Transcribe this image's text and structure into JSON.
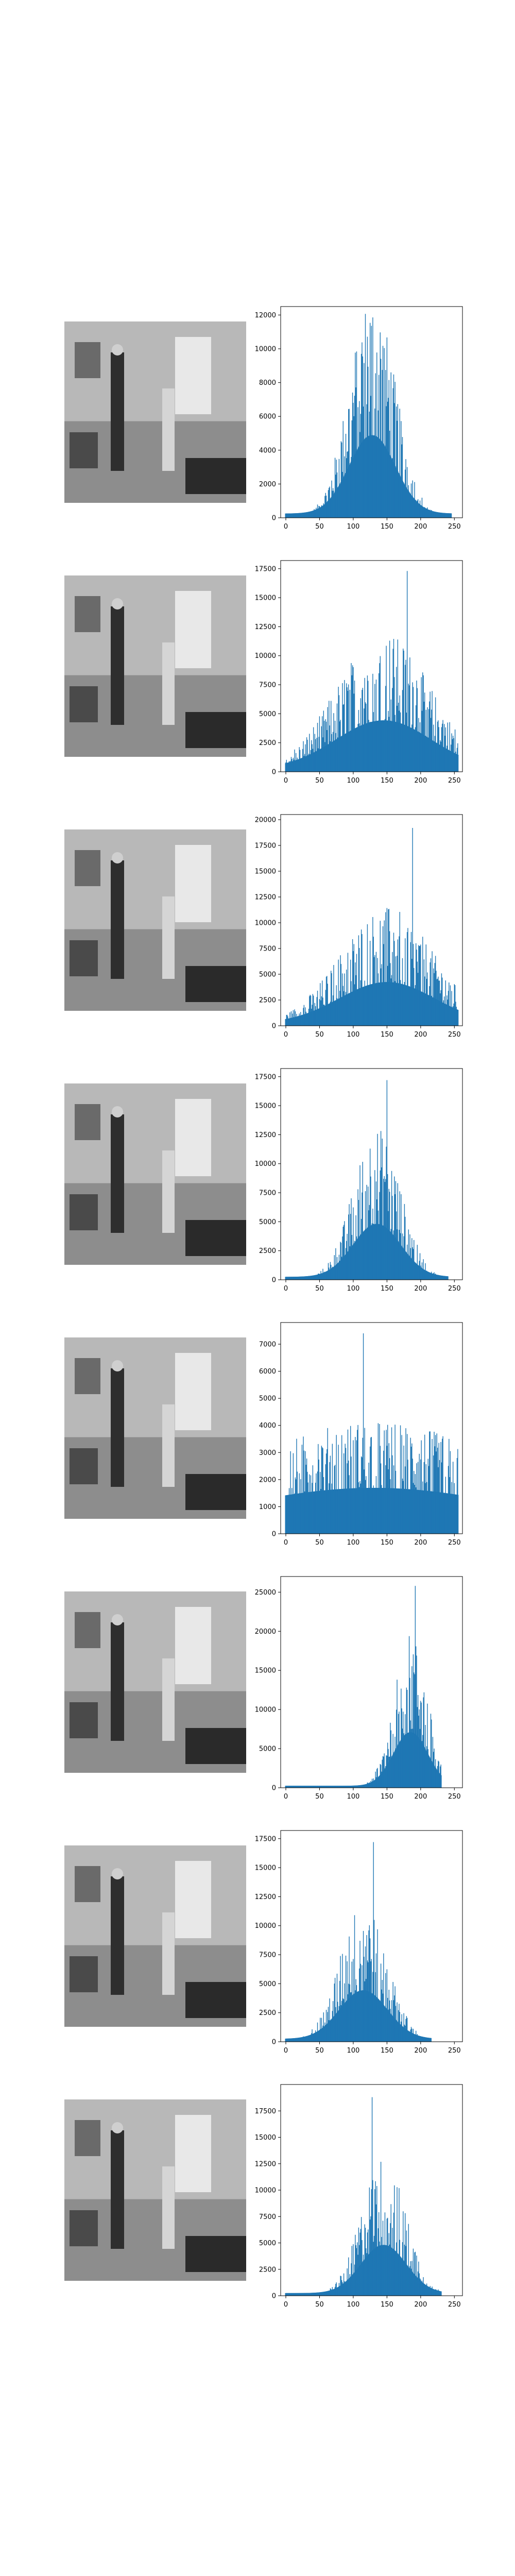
{
  "figure": {
    "rows": [
      {
        "image": "grayscale-photo-original",
        "hist_ymax": 12500,
        "y_ticks": [
          "0",
          "2000",
          "4000",
          "6000",
          "8000",
          "10000",
          "12000"
        ],
        "y_tick_values": [
          0,
          2000,
          4000,
          6000,
          8000,
          10000,
          12000
        ],
        "x_ticks": [
          "0",
          "50",
          "100",
          "150",
          "200",
          "250"
        ],
        "shape": {
          "mean": 128,
          "sd": 34,
          "peak": 12200,
          "min_val": 0,
          "max_val": 245
        }
      },
      {
        "image": "grayscale-photo-equalized-1",
        "hist_ymax": 18200,
        "y_ticks": [
          "0",
          "2500",
          "5000",
          "7500",
          "10000",
          "12500",
          "15000",
          "17500"
        ],
        "y_tick_values": [
          0,
          2500,
          5000,
          7500,
          10000,
          12500,
          15000,
          17500
        ],
        "x_ticks": [
          "0",
          "50",
          "100",
          "150",
          "200",
          "250"
        ],
        "shape": {
          "mean": 145,
          "sd": 70,
          "peak": 11000,
          "spike_at": 180,
          "spike": 17300,
          "min_val": 0,
          "max_val": 255
        }
      },
      {
        "image": "grayscale-photo-equalized-2",
        "hist_ymax": 20500,
        "y_ticks": [
          "0",
          "2500",
          "5000",
          "7500",
          "10000",
          "12500",
          "15000",
          "17500",
          "20000"
        ],
        "y_tick_values": [
          0,
          2500,
          5000,
          7500,
          10000,
          12500,
          15000,
          17500,
          20000
        ],
        "x_ticks": [
          "0",
          "50",
          "100",
          "150",
          "200",
          "250"
        ],
        "shape": {
          "mean": 150,
          "sd": 70,
          "peak": 10500,
          "spike_at": 188,
          "spike": 19200,
          "min_val": 0,
          "max_val": 255
        }
      },
      {
        "image": "grayscale-photo-contrast",
        "hist_ymax": 18200,
        "y_ticks": [
          "0",
          "2500",
          "5000",
          "7500",
          "10000",
          "12500",
          "15000",
          "17500"
        ],
        "y_tick_values": [
          0,
          2500,
          5000,
          7500,
          10000,
          12500,
          15000,
          17500
        ],
        "x_ticks": [
          "0",
          "50",
          "100",
          "150",
          "200",
          "250"
        ],
        "shape": {
          "mean": 135,
          "sd": 35,
          "peak": 12000,
          "spike_at": 150,
          "spike": 17200,
          "min_val": 0,
          "max_val": 240
        }
      },
      {
        "image": "grayscale-photo-flat",
        "hist_ymax": 7800,
        "y_ticks": [
          "0",
          "1000",
          "2000",
          "3000",
          "4000",
          "5000",
          "6000",
          "7000"
        ],
        "y_tick_values": [
          0,
          1000,
          2000,
          3000,
          4000,
          5000,
          6000,
          7000
        ],
        "x_ticks": [
          "0",
          "50",
          "100",
          "150",
          "200",
          "250"
        ],
        "shape": {
          "mean": 130,
          "sd": 200,
          "peak": 3800,
          "spike_at": 115,
          "spike": 7400,
          "min_val": 0,
          "max_val": 255
        }
      },
      {
        "image": "grayscale-photo-bright",
        "hist_ymax": 27000,
        "y_ticks": [
          "0",
          "5000",
          "10000",
          "15000",
          "20000",
          "25000"
        ],
        "y_tick_values": [
          0,
          5000,
          10000,
          15000,
          20000,
          25000
        ],
        "x_ticks": [
          "0",
          "50",
          "100",
          "150",
          "200",
          "250"
        ],
        "shape": {
          "mean": 185,
          "sd": 25,
          "peak": 18000,
          "spike_at": 192,
          "spike": 25800,
          "min_val": 0,
          "max_val": 230
        }
      },
      {
        "image": "grayscale-photo-dark",
        "hist_ymax": 18200,
        "y_ticks": [
          "0",
          "2500",
          "5000",
          "7500",
          "10000",
          "12500",
          "15000",
          "17500"
        ],
        "y_tick_values": [
          0,
          2500,
          5000,
          7500,
          10000,
          12500,
          15000,
          17500
        ],
        "x_ticks": [
          "0",
          "50",
          "100",
          "150",
          "200",
          "250"
        ],
        "shape": {
          "mean": 115,
          "sd": 35,
          "peak": 11000,
          "spike_at": 130,
          "spike": 17200,
          "min_val": 0,
          "max_val": 215
        }
      },
      {
        "image": "grayscale-photo-gamma",
        "hist_ymax": 20000,
        "y_ticks": [
          "0",
          "2500",
          "5000",
          "7500",
          "10000",
          "12500",
          "15000",
          "17500"
        ],
        "y_tick_values": [
          0,
          2500,
          5000,
          7500,
          10000,
          12500,
          15000,
          17500
        ],
        "x_ticks": [
          "0",
          "50",
          "100",
          "150",
          "200",
          "250"
        ],
        "shape": {
          "mean": 145,
          "sd": 33,
          "peak": 12000,
          "spike_at": 128,
          "spike": 18800,
          "min_val": 0,
          "max_val": 230
        }
      }
    ]
  },
  "chart_data": {
    "type": "bar",
    "description_series": "eight grayscale-intensity histograms (bins 0-255), one per image row",
    "x_range": [
      0,
      255
    ],
    "x_ticks": [
      0,
      50,
      100,
      150,
      200,
      250
    ],
    "y_ranges": [
      [
        0,
        12500
      ],
      [
        0,
        18200
      ],
      [
        0,
        20500
      ],
      [
        0,
        18200
      ],
      [
        0,
        7800
      ],
      [
        0,
        27000
      ],
      [
        0,
        18200
      ],
      [
        0,
        20000
      ]
    ],
    "grid": false,
    "color": "#1f77b4"
  }
}
